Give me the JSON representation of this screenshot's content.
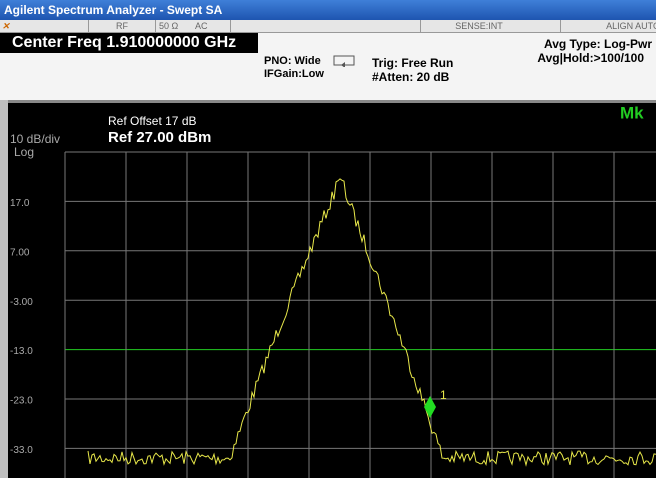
{
  "title_bar": "Agilent Spectrum Analyzer - Swept SA",
  "status_bar": {
    "rf": "RF",
    "impedance": "50 Ω",
    "coupling": "AC",
    "sense": "SENSE:INT",
    "align": "ALIGN AUTO"
  },
  "header": {
    "center_freq": "Center Freq 1.910000000 GHz",
    "pno": "PNO: Wide",
    "if_gain": "IFGain:Low",
    "trig": "Trig: Free Run",
    "atten": "#Atten: 20 dB",
    "avg_type": "Avg Type: Log-Pwr",
    "avg_hold": "Avg|Hold:>100/100"
  },
  "display": {
    "ref_offset": "Ref Offset 17 dB",
    "ref_level": "Ref 27.00 dBm",
    "scale": "10 dB/div",
    "scale_type": "Log",
    "marker_tab": "Mk",
    "marker_label": "1",
    "y_labels": [
      "17.0",
      "7.00",
      "-3.00",
      "-13.0",
      "-23.0",
      "-33.0"
    ]
  }
}
